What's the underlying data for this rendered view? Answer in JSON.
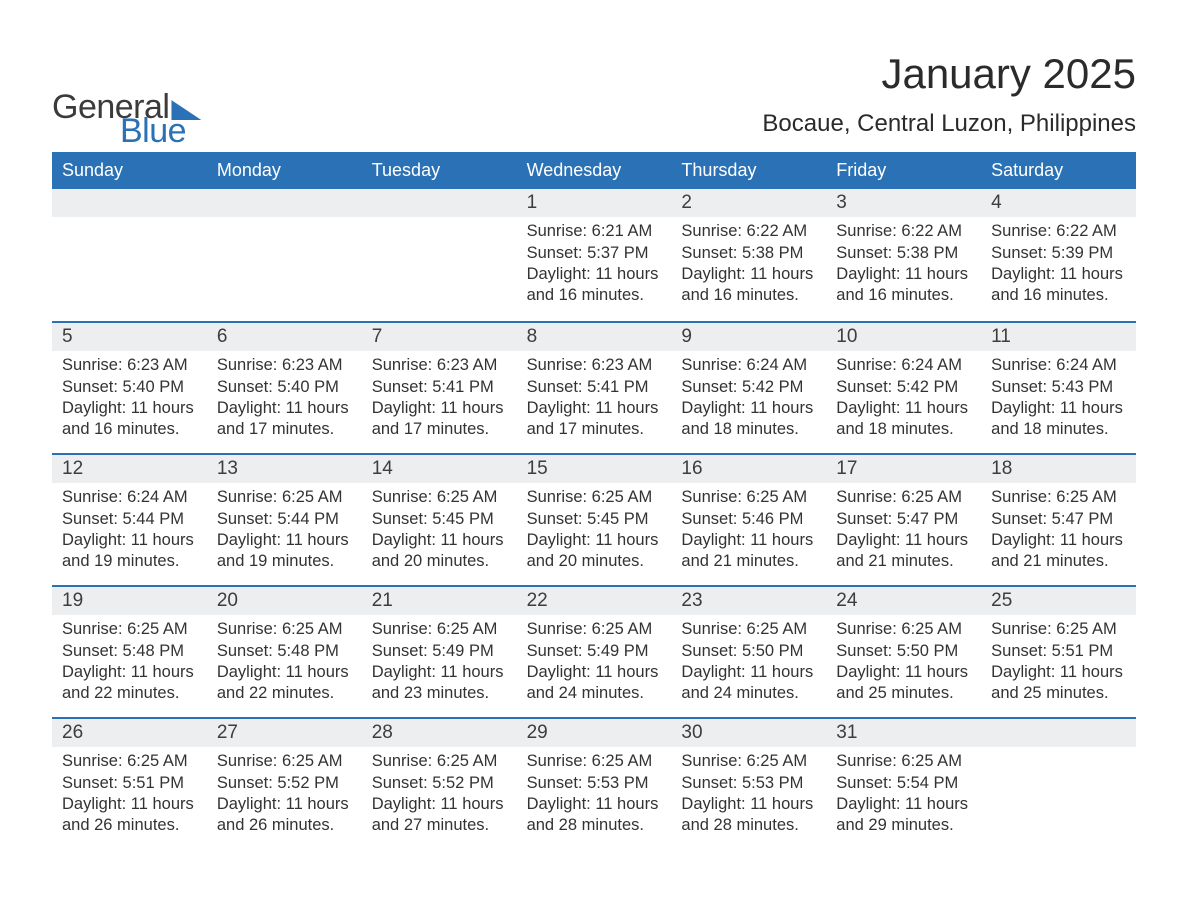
{
  "brand": {
    "word1": "General",
    "word2": "Blue",
    "accent": "#2a72b5"
  },
  "title": "January 2025",
  "location": "Bocaue, Central Luzon, Philippines",
  "colors": {
    "header_bg": "#2a72b5",
    "header_text": "#ffffff",
    "daynum_bg": "#eceeef",
    "week_border": "#2a72b5",
    "text": "#333333",
    "background": "#ffffff"
  },
  "typography": {
    "title_fontsize": 42,
    "location_fontsize": 24,
    "dow_fontsize": 18,
    "body_fontsize": 16.5
  },
  "layout": {
    "columns": 7,
    "rows": 5,
    "start_day_index": 3
  },
  "labels": {
    "sunrise": "Sunrise:",
    "sunset": "Sunset:",
    "daylight_prefix": "Daylight:"
  },
  "days_of_week": [
    "Sunday",
    "Monday",
    "Tuesday",
    "Wednesday",
    "Thursday",
    "Friday",
    "Saturday"
  ],
  "weeks": [
    [
      null,
      null,
      null,
      {
        "n": "1",
        "sunrise": "6:21 AM",
        "sunset": "5:37 PM",
        "daylight": "11 hours and 16 minutes."
      },
      {
        "n": "2",
        "sunrise": "6:22 AM",
        "sunset": "5:38 PM",
        "daylight": "11 hours and 16 minutes."
      },
      {
        "n": "3",
        "sunrise": "6:22 AM",
        "sunset": "5:38 PM",
        "daylight": "11 hours and 16 minutes."
      },
      {
        "n": "4",
        "sunrise": "6:22 AM",
        "sunset": "5:39 PM",
        "daylight": "11 hours and 16 minutes."
      }
    ],
    [
      {
        "n": "5",
        "sunrise": "6:23 AM",
        "sunset": "5:40 PM",
        "daylight": "11 hours and 16 minutes."
      },
      {
        "n": "6",
        "sunrise": "6:23 AM",
        "sunset": "5:40 PM",
        "daylight": "11 hours and 17 minutes."
      },
      {
        "n": "7",
        "sunrise": "6:23 AM",
        "sunset": "5:41 PM",
        "daylight": "11 hours and 17 minutes."
      },
      {
        "n": "8",
        "sunrise": "6:23 AM",
        "sunset": "5:41 PM",
        "daylight": "11 hours and 17 minutes."
      },
      {
        "n": "9",
        "sunrise": "6:24 AM",
        "sunset": "5:42 PM",
        "daylight": "11 hours and 18 minutes."
      },
      {
        "n": "10",
        "sunrise": "6:24 AM",
        "sunset": "5:42 PM",
        "daylight": "11 hours and 18 minutes."
      },
      {
        "n": "11",
        "sunrise": "6:24 AM",
        "sunset": "5:43 PM",
        "daylight": "11 hours and 18 minutes."
      }
    ],
    [
      {
        "n": "12",
        "sunrise": "6:24 AM",
        "sunset": "5:44 PM",
        "daylight": "11 hours and 19 minutes."
      },
      {
        "n": "13",
        "sunrise": "6:25 AM",
        "sunset": "5:44 PM",
        "daylight": "11 hours and 19 minutes."
      },
      {
        "n": "14",
        "sunrise": "6:25 AM",
        "sunset": "5:45 PM",
        "daylight": "11 hours and 20 minutes."
      },
      {
        "n": "15",
        "sunrise": "6:25 AM",
        "sunset": "5:45 PM",
        "daylight": "11 hours and 20 minutes."
      },
      {
        "n": "16",
        "sunrise": "6:25 AM",
        "sunset": "5:46 PM",
        "daylight": "11 hours and 21 minutes."
      },
      {
        "n": "17",
        "sunrise": "6:25 AM",
        "sunset": "5:47 PM",
        "daylight": "11 hours and 21 minutes."
      },
      {
        "n": "18",
        "sunrise": "6:25 AM",
        "sunset": "5:47 PM",
        "daylight": "11 hours and 21 minutes."
      }
    ],
    [
      {
        "n": "19",
        "sunrise": "6:25 AM",
        "sunset": "5:48 PM",
        "daylight": "11 hours and 22 minutes."
      },
      {
        "n": "20",
        "sunrise": "6:25 AM",
        "sunset": "5:48 PM",
        "daylight": "11 hours and 22 minutes."
      },
      {
        "n": "21",
        "sunrise": "6:25 AM",
        "sunset": "5:49 PM",
        "daylight": "11 hours and 23 minutes."
      },
      {
        "n": "22",
        "sunrise": "6:25 AM",
        "sunset": "5:49 PM",
        "daylight": "11 hours and 24 minutes."
      },
      {
        "n": "23",
        "sunrise": "6:25 AM",
        "sunset": "5:50 PM",
        "daylight": "11 hours and 24 minutes."
      },
      {
        "n": "24",
        "sunrise": "6:25 AM",
        "sunset": "5:50 PM",
        "daylight": "11 hours and 25 minutes."
      },
      {
        "n": "25",
        "sunrise": "6:25 AM",
        "sunset": "5:51 PM",
        "daylight": "11 hours and 25 minutes."
      }
    ],
    [
      {
        "n": "26",
        "sunrise": "6:25 AM",
        "sunset": "5:51 PM",
        "daylight": "11 hours and 26 minutes."
      },
      {
        "n": "27",
        "sunrise": "6:25 AM",
        "sunset": "5:52 PM",
        "daylight": "11 hours and 26 minutes."
      },
      {
        "n": "28",
        "sunrise": "6:25 AM",
        "sunset": "5:52 PM",
        "daylight": "11 hours and 27 minutes."
      },
      {
        "n": "29",
        "sunrise": "6:25 AM",
        "sunset": "5:53 PM",
        "daylight": "11 hours and 28 minutes."
      },
      {
        "n": "30",
        "sunrise": "6:25 AM",
        "sunset": "5:53 PM",
        "daylight": "11 hours and 28 minutes."
      },
      {
        "n": "31",
        "sunrise": "6:25 AM",
        "sunset": "5:54 PM",
        "daylight": "11 hours and 29 minutes."
      },
      null
    ]
  ]
}
